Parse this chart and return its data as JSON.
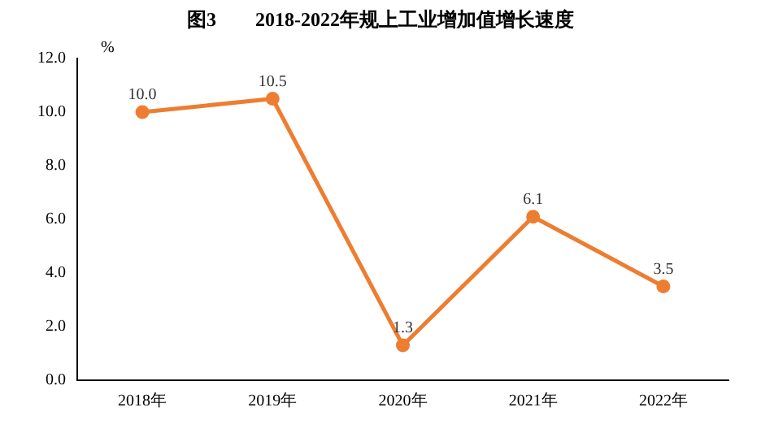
{
  "chart_data": {
    "type": "line",
    "title": "图3　　2018-2022年规上工业增加值增长速度",
    "ylabel": "%",
    "categories": [
      "2018年",
      "2019年",
      "2020年",
      "2021年",
      "2022年"
    ],
    "series": [
      {
        "color": "#ed7d31",
        "values": [
          10.0,
          10.5,
          1.3,
          6.1,
          3.5
        ],
        "value_labels": [
          "10.0",
          "10.5",
          "1.3",
          "6.1",
          "3.5"
        ]
      }
    ],
    "ylim": [
      0,
      12
    ],
    "yticks": [
      {
        "value": 0,
        "label": "0.0"
      },
      {
        "value": 2,
        "label": "2.0"
      },
      {
        "value": 4,
        "label": "4.0"
      },
      {
        "value": 6,
        "label": "6.0"
      },
      {
        "value": 8,
        "label": "8.0"
      },
      {
        "value": 10,
        "label": "10.0"
      },
      {
        "value": 12,
        "label": "12.0"
      }
    ],
    "grid": false,
    "legend": false,
    "marker": "circle",
    "line_style": "solid"
  }
}
